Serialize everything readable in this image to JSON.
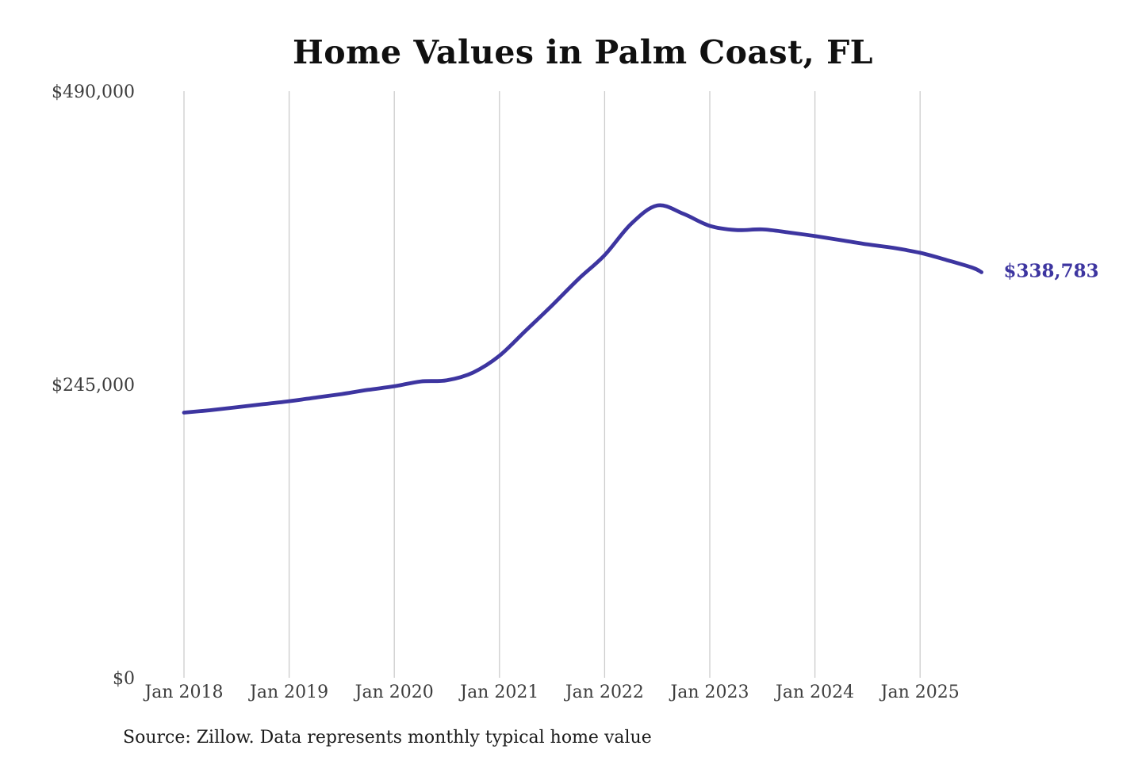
{
  "page": {
    "title": "Home Values in Palm Coast, FL",
    "source_note": "Source: Zillow. Data represents monthly typical home value"
  },
  "chart_data": {
    "type": "line",
    "title": "Home Values in Palm Coast, FL",
    "xlabel": "",
    "ylabel": "",
    "legend": "none",
    "grid": "vertical-only",
    "gridline_color": "#cccccc",
    "line_color": "#3d35a0",
    "end_label": "$338,783",
    "final_value": 338783,
    "y_axis": {
      "min": 0,
      "max": 490000,
      "tick_values": [
        490000,
        245000,
        0
      ],
      "tick_labels": [
        "$490,000",
        "$245,000",
        "$0"
      ]
    },
    "x_axis": {
      "start": "2018-01",
      "end": "2025-08",
      "tick_labels": [
        "Jan 2018",
        "Jan 2019",
        "Jan 2020",
        "Jan 2021",
        "Jan 2022",
        "Jan 2023",
        "Jan 2024",
        "Jan 2025"
      ]
    },
    "series": [
      {
        "name": "Monthly typical home value",
        "points": [
          {
            "date": "2018-01",
            "value": 221500
          },
          {
            "date": "2018-04",
            "value": 223500
          },
          {
            "date": "2018-07",
            "value": 226000
          },
          {
            "date": "2018-10",
            "value": 228500
          },
          {
            "date": "2019-01",
            "value": 231000
          },
          {
            "date": "2019-04",
            "value": 234000
          },
          {
            "date": "2019-07",
            "value": 237000
          },
          {
            "date": "2019-10",
            "value": 240500
          },
          {
            "date": "2020-01",
            "value": 243500
          },
          {
            "date": "2020-04",
            "value": 247500
          },
          {
            "date": "2020-07",
            "value": 248500
          },
          {
            "date": "2020-10",
            "value": 255000
          },
          {
            "date": "2021-01",
            "value": 269000
          },
          {
            "date": "2021-04",
            "value": 290000
          },
          {
            "date": "2021-07",
            "value": 311000
          },
          {
            "date": "2021-10",
            "value": 333000
          },
          {
            "date": "2022-01",
            "value": 353000
          },
          {
            "date": "2022-04",
            "value": 379000
          },
          {
            "date": "2022-07",
            "value": 394500
          },
          {
            "date": "2022-10",
            "value": 387500
          },
          {
            "date": "2023-01",
            "value": 377500
          },
          {
            "date": "2023-04",
            "value": 374000
          },
          {
            "date": "2023-07",
            "value": 374500
          },
          {
            "date": "2023-10",
            "value": 372000
          },
          {
            "date": "2024-01",
            "value": 369000
          },
          {
            "date": "2024-04",
            "value": 365500
          },
          {
            "date": "2024-07",
            "value": 362000
          },
          {
            "date": "2024-10",
            "value": 359000
          },
          {
            "date": "2025-01",
            "value": 355000
          },
          {
            "date": "2025-04",
            "value": 349000
          },
          {
            "date": "2025-07",
            "value": 342500
          },
          {
            "date": "2025-08",
            "value": 338783
          }
        ]
      }
    ]
  }
}
